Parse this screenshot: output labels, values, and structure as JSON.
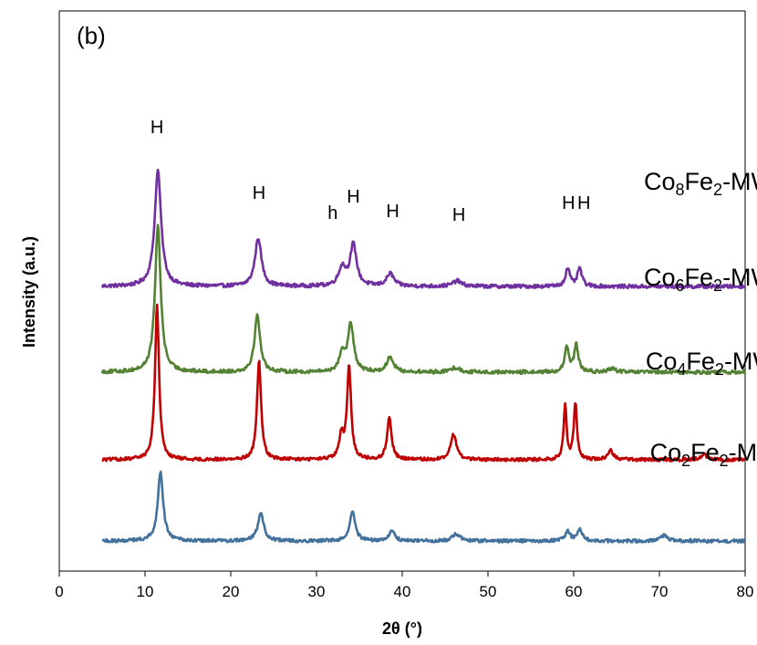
{
  "chart_data": {
    "type": "line",
    "panel_label": "(b)",
    "xlabel": "2θ (°)",
    "ylabel": "Intensity (a.u.)",
    "xlim": [
      0,
      80
    ],
    "xticks": [
      0,
      10,
      20,
      30,
      40,
      50,
      60,
      70,
      80
    ],
    "x_range_data": [
      5,
      80
    ],
    "legend": "none",
    "grid": false,
    "series": [
      {
        "name_parts": [
          [
            "Co",
            false
          ],
          [
            "8",
            true
          ],
          [
            "Fe",
            false
          ],
          [
            "2",
            true
          ],
          [
            "-MW",
            false
          ]
        ],
        "color": "#7030A0",
        "offset": 3,
        "baseline": 0.02,
        "noise": 0.04,
        "peaks": [
          {
            "x": 11.5,
            "h": 1.27,
            "w": 0.45
          },
          {
            "x": 23.2,
            "h": 0.53,
            "w": 0.45
          },
          {
            "x": 33.0,
            "h": 0.2,
            "w": 0.5
          },
          {
            "x": 34.3,
            "h": 0.45,
            "w": 0.45
          },
          {
            "x": 38.6,
            "h": 0.14,
            "w": 0.5
          },
          {
            "x": 46.4,
            "h": 0.06,
            "w": 0.6
          },
          {
            "x": 59.3,
            "h": 0.2,
            "w": 0.3
          },
          {
            "x": 60.7,
            "h": 0.2,
            "w": 0.3
          }
        ]
      },
      {
        "name_parts": [
          [
            "Co",
            false
          ],
          [
            "6",
            true
          ],
          [
            "Fe",
            false
          ],
          [
            "2",
            true
          ],
          [
            "-MW",
            false
          ]
        ],
        "color": "#548235",
        "offset": 2,
        "baseline": 0.02,
        "noise": 0.04,
        "peaks": [
          {
            "x": 11.5,
            "h": 1.6,
            "w": 0.4
          },
          {
            "x": 23.1,
            "h": 0.62,
            "w": 0.4
          },
          {
            "x": 33.0,
            "h": 0.2,
            "w": 0.4
          },
          {
            "x": 34.0,
            "h": 0.52,
            "w": 0.4
          },
          {
            "x": 38.6,
            "h": 0.17,
            "w": 0.45
          },
          {
            "x": 46.2,
            "h": 0.05,
            "w": 0.6
          },
          {
            "x": 59.2,
            "h": 0.27,
            "w": 0.28
          },
          {
            "x": 60.3,
            "h": 0.3,
            "w": 0.28
          },
          {
            "x": 64.5,
            "h": 0.04,
            "w": 0.5
          }
        ]
      },
      {
        "name_parts": [
          [
            "Co",
            false
          ],
          [
            "4",
            true
          ],
          [
            "Fe",
            false
          ],
          [
            "2",
            true
          ],
          [
            "-MW",
            false
          ]
        ],
        "color": "#C00000",
        "offset": 1,
        "baseline": 0.0,
        "noise": 0.035,
        "peaks": [
          {
            "x": 11.4,
            "h": 1.7,
            "w": 0.28
          },
          {
            "x": 23.3,
            "h": 1.1,
            "w": 0.28
          },
          {
            "x": 32.9,
            "h": 0.25,
            "w": 0.3
          },
          {
            "x": 33.8,
            "h": 1.02,
            "w": 0.28
          },
          {
            "x": 38.5,
            "h": 0.47,
            "w": 0.3
          },
          {
            "x": 46.0,
            "h": 0.28,
            "w": 0.4
          },
          {
            "x": 59.0,
            "h": 0.6,
            "w": 0.2
          },
          {
            "x": 60.2,
            "h": 0.63,
            "w": 0.22
          },
          {
            "x": 64.3,
            "h": 0.1,
            "w": 0.4
          },
          {
            "x": 75.2,
            "h": 0.06,
            "w": 0.4
          }
        ]
      },
      {
        "name_parts": [
          [
            "Co",
            false
          ],
          [
            "2",
            true
          ],
          [
            "Fe",
            false
          ],
          [
            "2",
            true
          ],
          [
            "-MW",
            false
          ]
        ],
        "color": "#41719C",
        "offset": 0,
        "baseline": 0.05,
        "noise": 0.035,
        "peaks": [
          {
            "x": 11.8,
            "h": 0.75,
            "w": 0.38
          },
          {
            "x": 23.5,
            "h": 0.3,
            "w": 0.42
          },
          {
            "x": 34.2,
            "h": 0.34,
            "w": 0.38
          },
          {
            "x": 38.8,
            "h": 0.11,
            "w": 0.4
          },
          {
            "x": 46.3,
            "h": 0.08,
            "w": 0.5
          },
          {
            "x": 59.3,
            "h": 0.1,
            "w": 0.35
          },
          {
            "x": 60.7,
            "h": 0.13,
            "w": 0.35
          },
          {
            "x": 70.5,
            "h": 0.06,
            "w": 0.5
          }
        ]
      }
    ],
    "annotations": [
      {
        "text": "H",
        "x": 11.4,
        "y": 4.52
      },
      {
        "text": "H",
        "x": 23.3,
        "y": 3.8
      },
      {
        "text": "h",
        "x": 31.9,
        "y": 3.58
      },
      {
        "text": "H",
        "x": 34.3,
        "y": 3.76
      },
      {
        "text": "H",
        "x": 38.9,
        "y": 3.6
      },
      {
        "text": "H",
        "x": 46.6,
        "y": 3.56
      },
      {
        "text": "H",
        "x": 59.4,
        "y": 3.69
      },
      {
        "text": "H",
        "x": 61.2,
        "y": 3.69
      }
    ],
    "series_label_positions": [
      {
        "x": 75.8,
        "y": 3.9
      },
      {
        "x": 75.8,
        "y": 2.85
      },
      {
        "x": 76.0,
        "y": 1.93
      },
      {
        "x": 76.5,
        "y": 0.93
      }
    ]
  }
}
